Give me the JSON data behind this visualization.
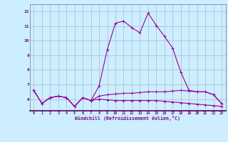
{
  "x": [
    0,
    1,
    2,
    3,
    4,
    5,
    6,
    7,
    8,
    9,
    10,
    11,
    12,
    13,
    14,
    15,
    16,
    17,
    18,
    19,
    20,
    21,
    22,
    23
  ],
  "line1": [
    6.6,
    5.7,
    6.1,
    6.2,
    6.1,
    5.5,
    6.1,
    5.9,
    6.9,
    9.4,
    11.2,
    11.35,
    10.9,
    10.55,
    11.9,
    11.05,
    10.3,
    9.5,
    7.85,
    6.6,
    6.5,
    6.5,
    6.3,
    5.7
  ],
  "line2": [
    6.6,
    5.7,
    6.1,
    6.2,
    6.1,
    5.5,
    6.1,
    5.9,
    6.2,
    6.3,
    6.35,
    6.4,
    6.4,
    6.45,
    6.5,
    6.5,
    6.5,
    6.55,
    6.6,
    6.55,
    6.5,
    6.5,
    6.3,
    5.7
  ],
  "line3": [
    6.6,
    5.7,
    6.1,
    6.2,
    6.1,
    5.5,
    6.1,
    5.9,
    6.0,
    5.95,
    5.9,
    5.9,
    5.9,
    5.9,
    5.9,
    5.9,
    5.85,
    5.8,
    5.75,
    5.7,
    5.65,
    5.6,
    5.55,
    5.5
  ],
  "line_color": "#990099",
  "bg_color": "#cceeff",
  "grid_color": "#aabbcc",
  "xlabel": "Windchill (Refroidissement éolien,°C)",
  "ylim": [
    5.2,
    12.5
  ],
  "xlim": [
    -0.5,
    23.5
  ],
  "yticks": [
    6,
    7,
    8,
    9,
    10,
    11,
    12
  ],
  "xticks": [
    0,
    1,
    2,
    3,
    4,
    5,
    6,
    7,
    8,
    9,
    10,
    11,
    12,
    13,
    14,
    15,
    16,
    17,
    18,
    19,
    20,
    21,
    22,
    23
  ]
}
